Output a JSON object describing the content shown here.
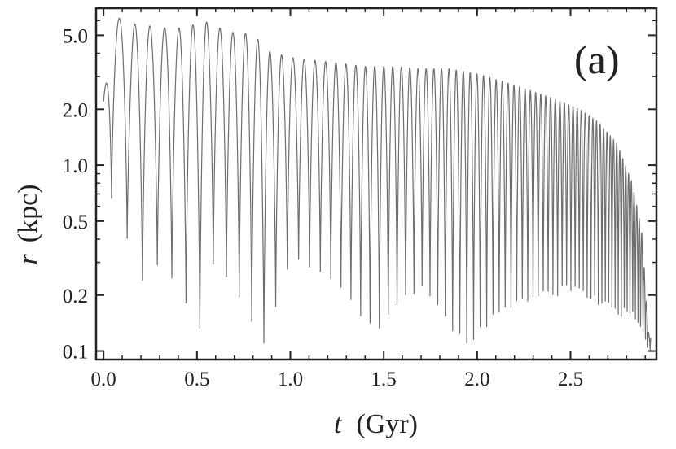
{
  "chart_data": {
    "type": "line",
    "title": "",
    "panel_label": "(a)",
    "xlabel_var": "t",
    "xlabel_unit": "(Gyr)",
    "ylabel_var": "r",
    "ylabel_unit": "(kpc)",
    "xlim": [
      -0.04,
      2.96
    ],
    "ylim": [
      0.09,
      7.0
    ],
    "yscale": "log",
    "grid": false,
    "legend": "none",
    "x_ticks": [
      {
        "value": 0.0,
        "label": "0.0"
      },
      {
        "value": 0.5,
        "label": "0.5"
      },
      {
        "value": 1.0,
        "label": "1.0"
      },
      {
        "value": 1.5,
        "label": "1.5"
      },
      {
        "value": 2.0,
        "label": "2.0"
      },
      {
        "value": 2.5,
        "label": "2.5"
      }
    ],
    "y_ticks": [
      {
        "value": 0.1,
        "label": "0.1"
      },
      {
        "value": 0.2,
        "label": "0.2"
      },
      {
        "value": 0.5,
        "label": "0.5"
      },
      {
        "value": 1.0,
        "label": "1.0"
      },
      {
        "value": 2.0,
        "label": "2.0"
      },
      {
        "value": 5.0,
        "label": "5.0"
      }
    ],
    "series": [
      {
        "color": "#555555",
        "style": "oscillating orbit, log-radius vs time",
        "apocenters": [
          [
            0.0,
            2.2
          ],
          [
            0.04,
            6.5
          ],
          [
            0.14,
            5.8
          ],
          [
            0.26,
            5.6
          ],
          [
            0.38,
            5.4
          ],
          [
            0.55,
            5.9
          ],
          [
            0.67,
            5.2
          ],
          [
            0.8,
            5.1
          ],
          [
            0.88,
            4.1
          ],
          [
            1.0,
            3.8
          ],
          [
            1.2,
            3.6
          ],
          [
            1.4,
            3.4
          ],
          [
            1.55,
            3.4
          ],
          [
            1.7,
            3.3
          ],
          [
            1.85,
            3.3
          ],
          [
            2.0,
            3.1
          ],
          [
            2.2,
            2.7
          ],
          [
            2.4,
            2.3
          ],
          [
            2.55,
            2.0
          ],
          [
            2.65,
            1.7
          ],
          [
            2.75,
            1.3
          ],
          [
            2.83,
            0.8
          ],
          [
            2.88,
            0.45
          ],
          [
            2.92,
            0.12
          ]
        ],
        "pericenters": [
          [
            0.09,
            0.65
          ],
          [
            0.17,
            0.2
          ],
          [
            0.3,
            0.28
          ],
          [
            0.38,
            0.22
          ],
          [
            0.52,
            0.12
          ],
          [
            0.58,
            0.28
          ],
          [
            0.7,
            0.22
          ],
          [
            0.85,
            0.1
          ],
          [
            1.0,
            0.3
          ],
          [
            1.2,
            0.25
          ],
          [
            1.45,
            0.12
          ],
          [
            1.7,
            0.22
          ],
          [
            1.93,
            0.1
          ],
          [
            2.1,
            0.15
          ],
          [
            2.3,
            0.18
          ],
          [
            2.5,
            0.2
          ],
          [
            2.7,
            0.16
          ],
          [
            2.85,
            0.14
          ],
          [
            2.92,
            0.1
          ]
        ]
      }
    ],
    "colors": {
      "axis": "#222222",
      "line": "#555555",
      "line_light": "#aaaaaa",
      "line_dark": "#333333"
    }
  }
}
